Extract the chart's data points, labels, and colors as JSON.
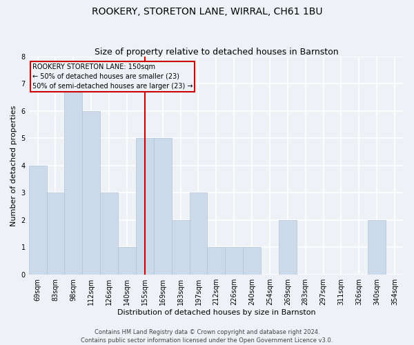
{
  "title": "ROOKERY, STORETON LANE, WIRRAL, CH61 1BU",
  "subtitle": "Size of property relative to detached houses in Barnston",
  "xlabel": "Distribution of detached houses by size in Barnston",
  "ylabel": "Number of detached properties",
  "categories": [
    "69sqm",
    "83sqm",
    "98sqm",
    "112sqm",
    "126sqm",
    "140sqm",
    "155sqm",
    "169sqm",
    "183sqm",
    "197sqm",
    "212sqm",
    "226sqm",
    "240sqm",
    "254sqm",
    "269sqm",
    "283sqm",
    "297sqm",
    "311sqm",
    "326sqm",
    "340sqm",
    "354sqm"
  ],
  "values": [
    4,
    3,
    7,
    6,
    3,
    1,
    5,
    5,
    2,
    3,
    1,
    1,
    1,
    0,
    2,
    0,
    0,
    0,
    0,
    2,
    0
  ],
  "bar_color": "#ccd9e8",
  "bar_edge_color": "#b0c4d8",
  "highlight_index": 6,
  "highlight_line_color": "#cc0000",
  "ylim": [
    0,
    8
  ],
  "yticks": [
    0,
    1,
    2,
    3,
    4,
    5,
    6,
    7,
    8
  ],
  "annotation_line1": "ROOKERY STORETON LANE: 150sqm",
  "annotation_line2": "← 50% of detached houses are smaller (23)",
  "annotation_line3": "50% of semi-detached houses are larger (23) →",
  "annotation_box_color": "#cc0000",
  "footer_line1": "Contains HM Land Registry data © Crown copyright and database right 2024.",
  "footer_line2": "Contains public sector information licensed under the Open Government Licence v3.0.",
  "background_color": "#eef2f7",
  "grid_color": "#ffffff",
  "title_fontsize": 10,
  "subtitle_fontsize": 9,
  "ylabel_fontsize": 8,
  "xlabel_fontsize": 8,
  "tick_fontsize": 7,
  "annotation_fontsize": 7,
  "footer_fontsize": 6
}
